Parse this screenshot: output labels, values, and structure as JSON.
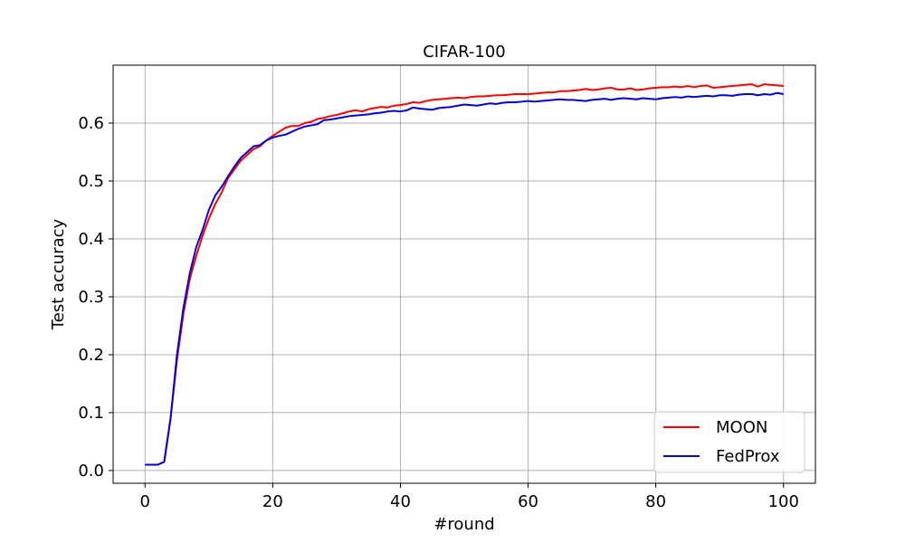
{
  "chart_data": {
    "type": "line",
    "title": "CIFAR-100",
    "xlabel": "#round",
    "ylabel": "Test accuracy",
    "xlim": [
      -5,
      105
    ],
    "ylim": [
      -0.022,
      0.7
    ],
    "x_ticks": [
      0,
      20,
      40,
      60,
      80,
      100
    ],
    "x_tick_labels": [
      "0",
      "20",
      "40",
      "60",
      "80",
      "100"
    ],
    "y_ticks": [
      0.0,
      0.1,
      0.2,
      0.3,
      0.4,
      0.5,
      0.6
    ],
    "y_tick_labels": [
      "0.0",
      "0.1",
      "0.2",
      "0.3",
      "0.4",
      "0.5",
      "0.6"
    ],
    "grid": true,
    "legend_position": "lower-right",
    "x": [
      0,
      1,
      2,
      3,
      4,
      5,
      6,
      7,
      8,
      9,
      10,
      11,
      12,
      13,
      14,
      15,
      16,
      17,
      18,
      19,
      20,
      21,
      22,
      23,
      24,
      25,
      26,
      27,
      28,
      29,
      30,
      31,
      32,
      33,
      34,
      35,
      36,
      37,
      38,
      39,
      40,
      41,
      42,
      43,
      44,
      45,
      46,
      47,
      48,
      49,
      50,
      51,
      52,
      53,
      54,
      55,
      56,
      57,
      58,
      59,
      60,
      61,
      62,
      63,
      64,
      65,
      66,
      67,
      68,
      69,
      70,
      71,
      72,
      73,
      74,
      75,
      76,
      77,
      78,
      79,
      80,
      81,
      82,
      83,
      84,
      85,
      86,
      87,
      88,
      89,
      90,
      91,
      92,
      93,
      94,
      95,
      96,
      97,
      98,
      99,
      100
    ],
    "series": [
      {
        "name": "MOON",
        "color": "#ff0000",
        "values": [
          0.01,
          0.01,
          0.01,
          0.015,
          0.09,
          0.19,
          0.27,
          0.33,
          0.37,
          0.405,
          0.435,
          0.46,
          0.48,
          0.505,
          0.52,
          0.535,
          0.545,
          0.555,
          0.56,
          0.57,
          0.578,
          0.585,
          0.592,
          0.595,
          0.595,
          0.6,
          0.602,
          0.607,
          0.609,
          0.612,
          0.614,
          0.617,
          0.62,
          0.622,
          0.62,
          0.624,
          0.626,
          0.628,
          0.627,
          0.63,
          0.631,
          0.633,
          0.636,
          0.635,
          0.638,
          0.64,
          0.641,
          0.642,
          0.643,
          0.644,
          0.643,
          0.645,
          0.646,
          0.646,
          0.647,
          0.648,
          0.648,
          0.649,
          0.65,
          0.65,
          0.65,
          0.651,
          0.652,
          0.653,
          0.653,
          0.655,
          0.655,
          0.656,
          0.657,
          0.659,
          0.657,
          0.658,
          0.66,
          0.661,
          0.658,
          0.658,
          0.66,
          0.657,
          0.658,
          0.66,
          0.661,
          0.662,
          0.662,
          0.663,
          0.662,
          0.664,
          0.662,
          0.664,
          0.665,
          0.661,
          0.662,
          0.663,
          0.664,
          0.665,
          0.666,
          0.667,
          0.663,
          0.667,
          0.666,
          0.665,
          0.664
        ]
      },
      {
        "name": "FedProx",
        "color": "#0000dd",
        "values": [
          0.01,
          0.01,
          0.01,
          0.015,
          0.09,
          0.2,
          0.28,
          0.34,
          0.385,
          0.415,
          0.45,
          0.475,
          0.49,
          0.508,
          0.525,
          0.54,
          0.55,
          0.56,
          0.562,
          0.57,
          0.575,
          0.578,
          0.58,
          0.585,
          0.59,
          0.594,
          0.596,
          0.598,
          0.605,
          0.606,
          0.608,
          0.61,
          0.612,
          0.613,
          0.614,
          0.615,
          0.617,
          0.618,
          0.62,
          0.621,
          0.62,
          0.622,
          0.627,
          0.625,
          0.624,
          0.623,
          0.626,
          0.627,
          0.628,
          0.63,
          0.632,
          0.631,
          0.63,
          0.632,
          0.634,
          0.633,
          0.635,
          0.636,
          0.636,
          0.637,
          0.638,
          0.637,
          0.638,
          0.639,
          0.64,
          0.641,
          0.64,
          0.64,
          0.639,
          0.638,
          0.64,
          0.641,
          0.642,
          0.64,
          0.642,
          0.643,
          0.642,
          0.641,
          0.643,
          0.642,
          0.641,
          0.643,
          0.644,
          0.645,
          0.644,
          0.646,
          0.645,
          0.646,
          0.647,
          0.646,
          0.648,
          0.648,
          0.647,
          0.649,
          0.65,
          0.65,
          0.648,
          0.65,
          0.649,
          0.652,
          0.65
        ]
      }
    ]
  }
}
